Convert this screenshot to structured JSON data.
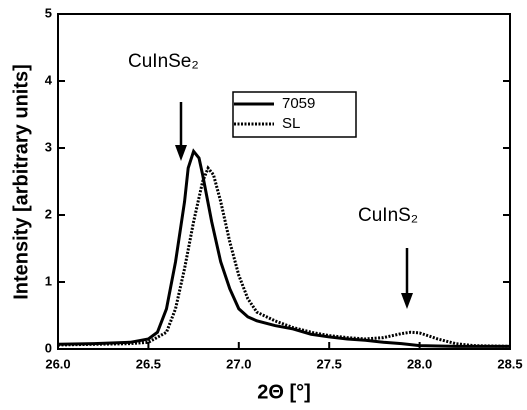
{
  "chart_data": {
    "type": "line",
    "xlabel": "2Θ [°]",
    "ylabel": "Intensity [arbitrary units]",
    "annotations": [
      "CuInSe₂",
      "CuInS₂"
    ],
    "xlim": [
      26.0,
      28.5
    ],
    "ylim": [
      0,
      5
    ],
    "xticks": [
      {
        "value": 26,
        "label": "26.0"
      },
      26.5,
      {
        "value": 27,
        "label": "27.0"
      },
      27.5,
      {
        "value": 28,
        "label": "28.0"
      },
      28.5
    ],
    "yticks": [
      0,
      1,
      2,
      3,
      4,
      5
    ],
    "legend": "upper center",
    "series": [
      {
        "name": "7059",
        "color": "#000000",
        "dash": "solid",
        "x": [
          26.0,
          26.2,
          26.4,
          26.5,
          26.55,
          26.6,
          26.65,
          26.7,
          26.72,
          26.75,
          26.78,
          26.8,
          26.85,
          26.9,
          26.95,
          27.0,
          27.05,
          27.1,
          27.2,
          27.3,
          27.4,
          27.5,
          27.6,
          27.7,
          27.8,
          27.9,
          28.0,
          28.2,
          28.5
        ],
        "values": [
          0.07,
          0.08,
          0.1,
          0.15,
          0.25,
          0.6,
          1.3,
          2.2,
          2.7,
          2.95,
          2.85,
          2.6,
          1.9,
          1.3,
          0.9,
          0.6,
          0.48,
          0.42,
          0.35,
          0.3,
          0.22,
          0.18,
          0.15,
          0.13,
          0.1,
          0.08,
          0.05,
          0.04,
          0.04
        ]
      },
      {
        "name": "SL",
        "color": "#000000",
        "dash": "dotted",
        "x": [
          26.0,
          26.4,
          26.5,
          26.6,
          26.65,
          26.7,
          26.75,
          26.8,
          26.83,
          26.86,
          26.9,
          26.95,
          27.0,
          27.05,
          27.1,
          27.2,
          27.3,
          27.4,
          27.5,
          27.6,
          27.7,
          27.8,
          27.9,
          27.95,
          28.0,
          28.1,
          28.2,
          28.3,
          28.5
        ],
        "values": [
          0.06,
          0.08,
          0.1,
          0.25,
          0.6,
          1.2,
          1.9,
          2.5,
          2.7,
          2.6,
          2.2,
          1.6,
          1.1,
          0.75,
          0.55,
          0.42,
          0.32,
          0.25,
          0.2,
          0.17,
          0.15,
          0.17,
          0.23,
          0.25,
          0.24,
          0.15,
          0.08,
          0.05,
          0.04
        ]
      }
    ]
  }
}
